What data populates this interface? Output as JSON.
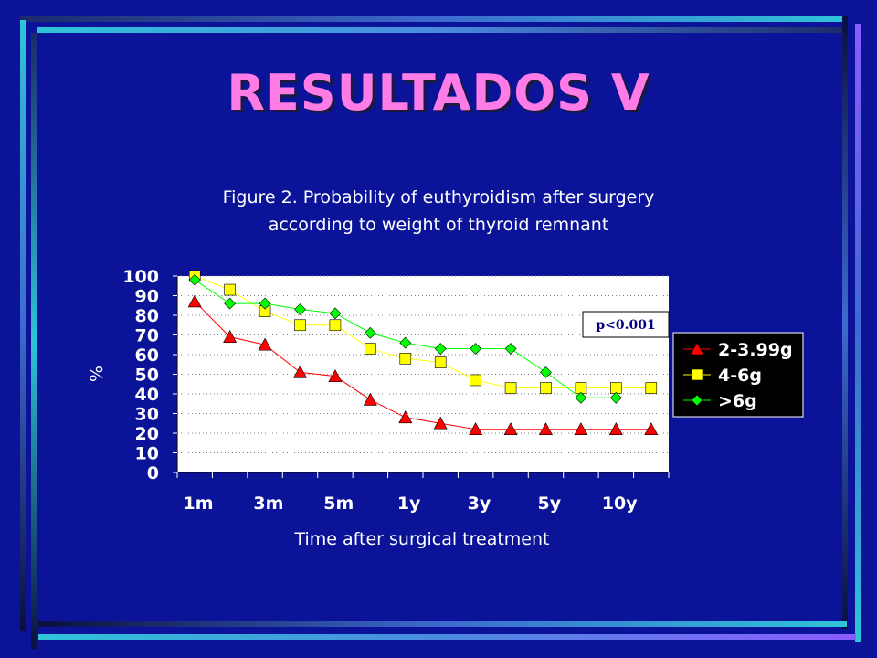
{
  "slide": {
    "title": "RESULTADOS V"
  },
  "chart_data": {
    "type": "line",
    "title": "Figure 2. Probability of euthyroidism after surgery according to weight of thyroid remnant",
    "title_lines": [
      "Figure 2. Probability of euthyroidism after surgery",
      "according to weight of thyroid remnant"
    ],
    "xlabel": "Time after surgical treatment",
    "ylabel": "%",
    "ylim": [
      0,
      100
    ],
    "yticks": [
      0,
      10,
      20,
      30,
      40,
      50,
      60,
      70,
      80,
      90,
      100
    ],
    "x_tick_labels": [
      "1m",
      "3m",
      "5m",
      "1y",
      "3y",
      "5y",
      "10y"
    ],
    "annotation": "p<0.001",
    "legend_position": "right",
    "grid": "horizontal dotted",
    "colors": {
      "background": "#0b1499",
      "plot": "#ffffff",
      "title": "#ff7ce6",
      "legend_bg": "#000000"
    },
    "series": [
      {
        "name": "2-3.99g",
        "color": "#ff0000",
        "marker": "triangle",
        "values": [
          87,
          69,
          65,
          51,
          49,
          37,
          28,
          25,
          22,
          22,
          22,
          22,
          22,
          22
        ]
      },
      {
        "name": "4-6g",
        "color": "#ffff00",
        "marker": "square",
        "values": [
          100,
          93,
          82,
          75,
          75,
          63,
          58,
          56,
          47,
          43,
          43,
          43,
          43,
          43
        ]
      },
      {
        "name": ">6g",
        "color": "#00ff00",
        "marker": "diamond",
        "values": [
          98,
          86,
          86,
          83,
          81,
          71,
          66,
          63,
          63,
          63,
          51,
          38,
          38,
          null
        ]
      }
    ]
  }
}
